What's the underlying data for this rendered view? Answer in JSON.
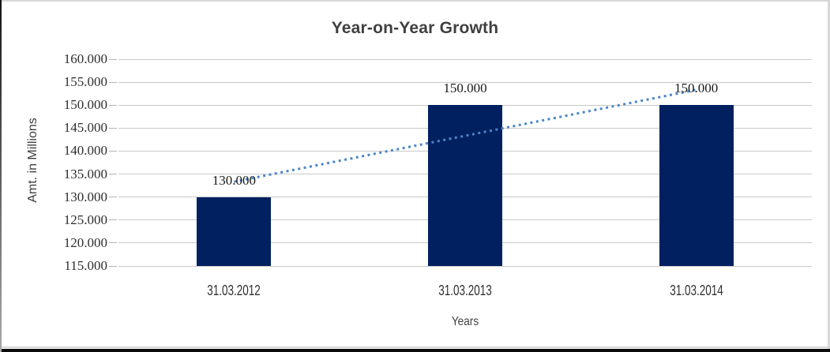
{
  "chart_data": {
    "type": "bar",
    "title": "Year-on-Year Growth",
    "xlabel": "Years",
    "ylabel": "Amt. in Millions",
    "categories": [
      "31.03.2012",
      "31.03.2013",
      "31.03.2014"
    ],
    "values": [
      130000,
      150000,
      150000
    ],
    "data_labels": [
      "130.000",
      "150.000",
      "150.000"
    ],
    "y_ticks": [
      {
        "value": 160000,
        "label": "160.000"
      },
      {
        "value": 155000,
        "label": "155.000"
      },
      {
        "value": 150000,
        "label": "150.000"
      },
      {
        "value": 145000,
        "label": "145.000"
      },
      {
        "value": 140000,
        "label": "140.000"
      },
      {
        "value": 135000,
        "label": "135.000"
      },
      {
        "value": 130000,
        "label": "130.000"
      },
      {
        "value": 125000,
        "label": "125.000"
      },
      {
        "value": 120000,
        "label": "120.000"
      },
      {
        "value": 115000,
        "label": "115.000"
      }
    ],
    "ylim": [
      115000,
      160000
    ],
    "grid": true,
    "legend": "none",
    "bar_color": "#002060",
    "trendline": {
      "type": "linear",
      "style": "dotted",
      "color": "#4a86c8",
      "endpoint_values": [
        133333,
        153333
      ]
    }
  },
  "colors": {
    "title_text": "#3f3f3f",
    "axis_text": "#2e2e2e",
    "gridline": "#c9c9c9",
    "background": "#ffffff",
    "frame_border": "#d8d8d8"
  }
}
